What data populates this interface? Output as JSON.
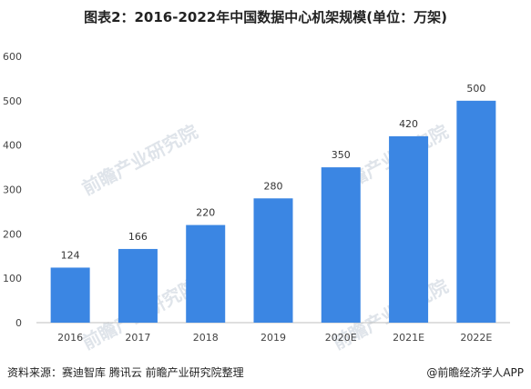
{
  "title": "图表2：2016-2022年中国数据中心机架规模(单位：万架)",
  "footer": {
    "source": "资料来源：赛迪智库 腾讯云 前瞻产业研究院整理",
    "brand": "@前瞻经济学人APP"
  },
  "watermark": "前瞻产业研究院",
  "chart_data": {
    "type": "bar",
    "categories": [
      "2016",
      "2017",
      "2018",
      "2019",
      "2020E",
      "2021E",
      "2022E"
    ],
    "values": [
      124,
      166,
      220,
      280,
      350,
      420,
      500
    ],
    "ylim": [
      0,
      600
    ],
    "yticks": [
      0,
      100,
      200,
      300,
      400,
      500,
      600
    ],
    "grid": false,
    "bar_color": "#3b86e3",
    "xlabel": "",
    "ylabel": ""
  }
}
